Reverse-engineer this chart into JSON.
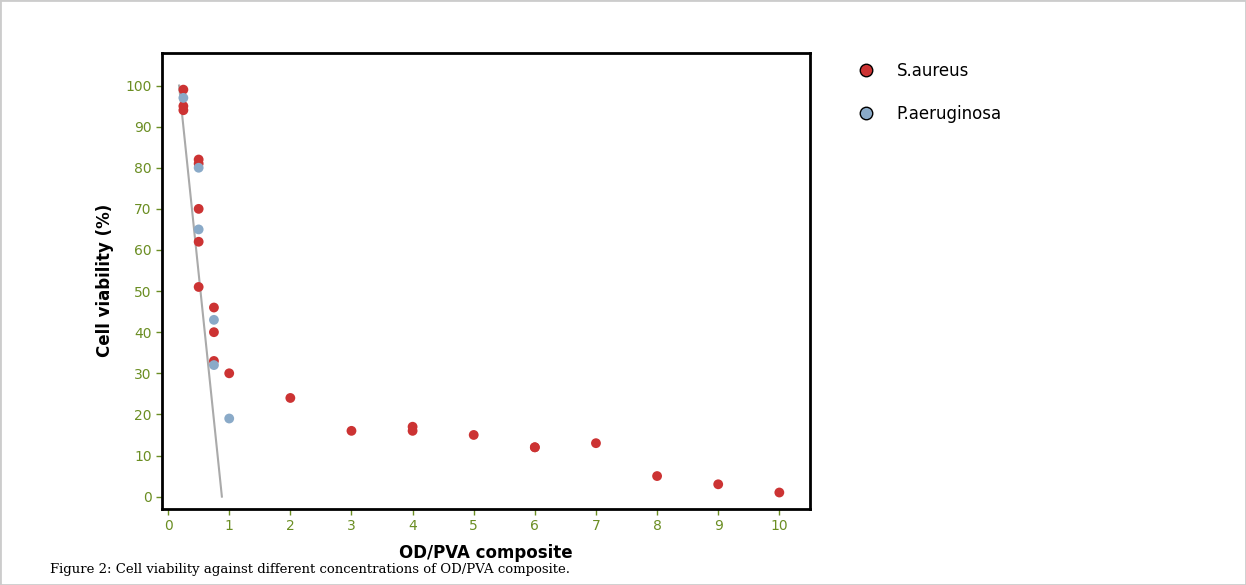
{
  "title": "",
  "xlabel": "OD/PVA composite",
  "ylabel": "Cell viability (%)",
  "figure_caption": "Figure 2: Cell viability against different concentrations of OD/PVA composite.",
  "xlim": [
    -0.1,
    10.5
  ],
  "ylim": [
    -3,
    108
  ],
  "xticks": [
    0,
    1,
    2,
    3,
    4,
    5,
    6,
    7,
    8,
    9,
    10
  ],
  "yticks": [
    0,
    10,
    20,
    30,
    40,
    50,
    60,
    70,
    80,
    90,
    100
  ],
  "s_aureus_x": [
    0.25,
    0.25,
    0.25,
    0.5,
    0.5,
    0.5,
    0.5,
    0.5,
    0.75,
    0.75,
    0.75,
    1.0,
    2.0,
    3.0,
    4.0,
    4.0,
    5.0,
    6.0,
    6.0,
    7.0,
    8.0,
    9.0,
    10.0
  ],
  "s_aureus_y": [
    99,
    95,
    94,
    81,
    82,
    70,
    62,
    51,
    46,
    40,
    33,
    30,
    24,
    16,
    17,
    16,
    15,
    12,
    12,
    13,
    5,
    3,
    1
  ],
  "p_aeruginosa_x": [
    0.25,
    0.5,
    0.5,
    0.75,
    0.75,
    1.0
  ],
  "p_aeruginosa_y": [
    97,
    80,
    65,
    43,
    32,
    19
  ],
  "p_aeruginosa_line_x": [
    0.18,
    0.88
  ],
  "p_aeruginosa_line_y": [
    100,
    0
  ],
  "s_aureus_color": "#cc3333",
  "p_aeruginosa_color": "#8aaac8",
  "s_aureus_fit_color": "#e8a8a8",
  "p_aeruginosa_fit_color": "#aaaaaa",
  "background_color": "#ffffff",
  "axis_color": "#000000",
  "tick_label_color": "#6b8e23",
  "xlabel_color": "#000000",
  "ylabel_color": "#000000",
  "legend_label_s": "S.aureus",
  "legend_label_p": "P.aeruginosa",
  "figwidth": 12.46,
  "figheight": 5.85,
  "border_color": "#cccccc"
}
